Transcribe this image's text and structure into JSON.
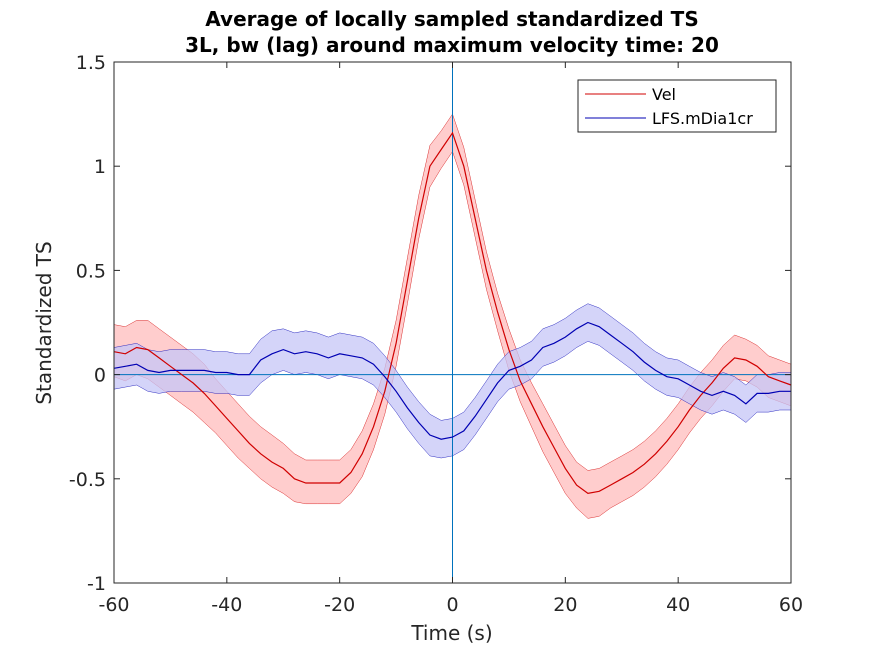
{
  "chart_data": {
    "type": "line",
    "title_line1": "Average of locally sampled standardized TS",
    "title_line2": "3L, bw (lag) around maximum velocity time: 20",
    "xlabel": "Time (s)",
    "ylabel": "Standardized TS",
    "xlim": [
      -60,
      60
    ],
    "ylim": [
      -1,
      1.5
    ],
    "xticks": [
      -60,
      -40,
      -20,
      0,
      20,
      40,
      60
    ],
    "yticks": [
      -1,
      -0.5,
      0,
      0.5,
      1,
      1.5
    ],
    "xtick_labels": [
      "-60",
      "-40",
      "-20",
      "0",
      "20",
      "40",
      "60"
    ],
    "ytick_labels": [
      "-1",
      "-0.5",
      "0",
      "0.5",
      "1",
      "1.5"
    ],
    "reference_lines": {
      "x": 0,
      "y": 0,
      "color": "#0072bd"
    },
    "legend_position": "top-right",
    "x": [
      -60,
      -58,
      -56,
      -54,
      -52,
      -50,
      -48,
      -46,
      -44,
      -42,
      -40,
      -38,
      -36,
      -34,
      -32,
      -30,
      -28,
      -26,
      -24,
      -22,
      -20,
      -18,
      -16,
      -14,
      -12,
      -10,
      -8,
      -6,
      -4,
      -2,
      0,
      2,
      4,
      6,
      8,
      10,
      12,
      14,
      16,
      18,
      20,
      22,
      24,
      26,
      28,
      30,
      32,
      34,
      36,
      38,
      40,
      42,
      44,
      46,
      48,
      50,
      52,
      54,
      56,
      58,
      60
    ],
    "series": [
      {
        "name": "Vel",
        "color": "#d00000",
        "band_color": "#ffbcbc",
        "values": [
          0.11,
          0.1,
          0.13,
          0.12,
          0.08,
          0.04,
          0.0,
          -0.04,
          -0.09,
          -0.15,
          -0.21,
          -0.27,
          -0.33,
          -0.38,
          -0.42,
          -0.45,
          -0.5,
          -0.52,
          -0.52,
          -0.52,
          -0.52,
          -0.47,
          -0.38,
          -0.25,
          -0.08,
          0.15,
          0.45,
          0.75,
          1.0,
          1.08,
          1.16,
          1.0,
          0.75,
          0.5,
          0.3,
          0.12,
          -0.03,
          -0.14,
          -0.25,
          -0.35,
          -0.45,
          -0.53,
          -0.57,
          -0.56,
          -0.53,
          -0.5,
          -0.47,
          -0.43,
          -0.38,
          -0.32,
          -0.25,
          -0.17,
          -0.1,
          -0.04,
          0.03,
          0.08,
          0.07,
          0.04,
          -0.01,
          -0.03,
          -0.05
        ],
        "lower": [
          -0.01,
          -0.03,
          0.0,
          -0.02,
          -0.06,
          -0.1,
          -0.14,
          -0.18,
          -0.23,
          -0.28,
          -0.34,
          -0.4,
          -0.45,
          -0.5,
          -0.54,
          -0.57,
          -0.61,
          -0.62,
          -0.62,
          -0.62,
          -0.62,
          -0.57,
          -0.49,
          -0.36,
          -0.19,
          0.04,
          0.34,
          0.65,
          0.9,
          0.99,
          1.07,
          0.91,
          0.66,
          0.41,
          0.21,
          0.02,
          -0.13,
          -0.25,
          -0.37,
          -0.47,
          -0.57,
          -0.64,
          -0.69,
          -0.68,
          -0.64,
          -0.61,
          -0.58,
          -0.54,
          -0.49,
          -0.43,
          -0.36,
          -0.28,
          -0.21,
          -0.15,
          -0.08,
          -0.02,
          -0.03,
          -0.06,
          -0.11,
          -0.13,
          -0.15
        ],
        "upper": [
          0.24,
          0.23,
          0.26,
          0.26,
          0.22,
          0.18,
          0.14,
          0.1,
          0.05,
          -0.02,
          -0.08,
          -0.14,
          -0.2,
          -0.25,
          -0.29,
          -0.33,
          -0.38,
          -0.41,
          -0.41,
          -0.41,
          -0.41,
          -0.36,
          -0.27,
          -0.14,
          0.03,
          0.26,
          0.56,
          0.86,
          1.1,
          1.17,
          1.25,
          1.09,
          0.84,
          0.59,
          0.39,
          0.22,
          0.07,
          -0.04,
          -0.14,
          -0.24,
          -0.34,
          -0.42,
          -0.46,
          -0.45,
          -0.42,
          -0.39,
          -0.36,
          -0.32,
          -0.27,
          -0.21,
          -0.14,
          -0.06,
          0.01,
          0.07,
          0.14,
          0.19,
          0.17,
          0.14,
          0.09,
          0.07,
          0.05
        ]
      },
      {
        "name": "LFS.mDia1cr",
        "color": "#0000b3",
        "band_color": "#c5c5f7",
        "values": [
          0.03,
          0.04,
          0.05,
          0.02,
          0.01,
          0.02,
          0.02,
          0.02,
          0.02,
          0.01,
          0.01,
          0.0,
          0.0,
          0.07,
          0.1,
          0.12,
          0.1,
          0.11,
          0.1,
          0.08,
          0.1,
          0.09,
          0.08,
          0.05,
          -0.01,
          -0.08,
          -0.16,
          -0.23,
          -0.29,
          -0.31,
          -0.3,
          -0.27,
          -0.2,
          -0.12,
          -0.04,
          0.02,
          0.04,
          0.07,
          0.13,
          0.15,
          0.18,
          0.22,
          0.25,
          0.23,
          0.19,
          0.15,
          0.11,
          0.06,
          0.02,
          -0.01,
          -0.02,
          -0.05,
          -0.08,
          -0.1,
          -0.08,
          -0.1,
          -0.14,
          -0.09,
          -0.09,
          -0.08,
          -0.08
        ],
        "lower": [
          -0.07,
          -0.06,
          -0.05,
          -0.08,
          -0.09,
          -0.08,
          -0.08,
          -0.08,
          -0.08,
          -0.09,
          -0.09,
          -0.1,
          -0.1,
          -0.04,
          0.0,
          0.02,
          0.0,
          0.01,
          0.0,
          -0.02,
          0.0,
          -0.01,
          -0.02,
          -0.05,
          -0.11,
          -0.18,
          -0.26,
          -0.33,
          -0.39,
          -0.4,
          -0.39,
          -0.36,
          -0.29,
          -0.21,
          -0.13,
          -0.07,
          -0.05,
          -0.02,
          0.04,
          0.06,
          0.09,
          0.13,
          0.16,
          0.14,
          0.1,
          0.06,
          0.02,
          -0.03,
          -0.07,
          -0.1,
          -0.11,
          -0.14,
          -0.17,
          -0.19,
          -0.17,
          -0.19,
          -0.23,
          -0.18,
          -0.18,
          -0.17,
          -0.17
        ],
        "upper": [
          0.13,
          0.14,
          0.15,
          0.12,
          0.11,
          0.12,
          0.12,
          0.12,
          0.12,
          0.11,
          0.11,
          0.1,
          0.1,
          0.17,
          0.21,
          0.22,
          0.2,
          0.21,
          0.2,
          0.18,
          0.2,
          0.19,
          0.18,
          0.15,
          0.09,
          0.02,
          -0.06,
          -0.13,
          -0.19,
          -0.22,
          -0.21,
          -0.18,
          -0.11,
          -0.03,
          0.05,
          0.11,
          0.13,
          0.16,
          0.22,
          0.24,
          0.27,
          0.31,
          0.34,
          0.32,
          0.28,
          0.24,
          0.2,
          0.15,
          0.11,
          0.08,
          0.07,
          0.04,
          0.01,
          -0.01,
          0.01,
          -0.01,
          -0.05,
          0.0,
          0.0,
          0.01,
          0.01
        ]
      }
    ]
  }
}
